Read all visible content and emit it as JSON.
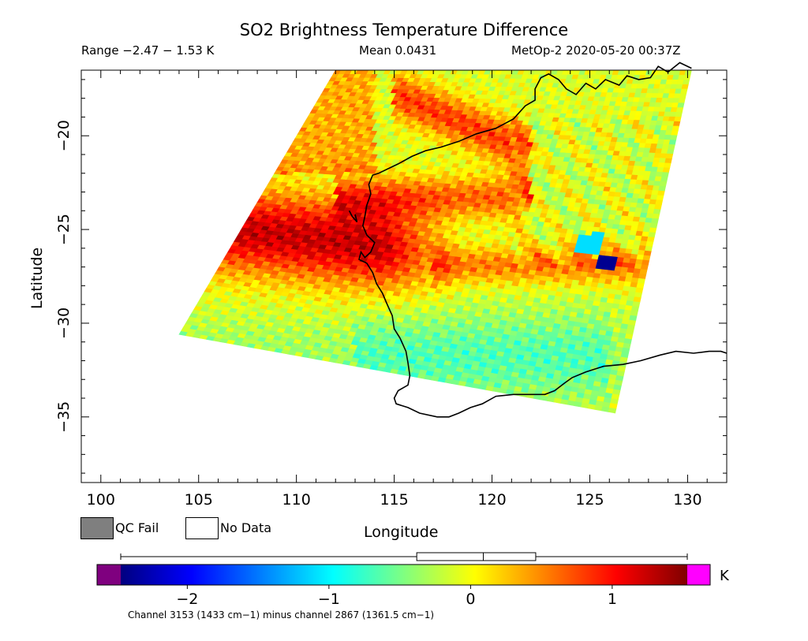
{
  "header": {
    "title": "SO2 Brightness Temperature Difference",
    "range": "Range −2.47 − 1.53 K",
    "mean": "Mean 0.0431",
    "satellite": "MetOp-2 2020-05-20 00:37Z"
  },
  "legend": {
    "qc_fail": "QC Fail",
    "no_data": "No Data",
    "qc_fail_color": "#7f7f7f",
    "no_data_color": "#ffffff"
  },
  "footnote": "Channel 3153 (1433 cm−1) minus channel 2867 (1361.5 cm−1)",
  "chart_data": {
    "type": "heatmap",
    "title": "SO2 Brightness Temperature Difference",
    "xlabel": "Longitude",
    "ylabel": "Latitude",
    "xlim": [
      99,
      132
    ],
    "ylim": [
      -38.5,
      -16.5
    ],
    "x_ticks": [
      100,
      105,
      110,
      115,
      120,
      125,
      130
    ],
    "y_ticks": [
      -20,
      -25,
      -30,
      -35
    ],
    "x_tick_labels": [
      "100",
      "105",
      "110",
      "115",
      "120",
      "125",
      "130"
    ],
    "y_tick_labels": [
      "−20",
      "−25",
      "−30",
      "−35"
    ],
    "value_range": [
      -2.47,
      1.53
    ],
    "mean": 0.0431,
    "units": "K",
    "swath_corners": [
      [
        104.0,
        -30.6
      ],
      [
        112.0,
        -16.5
      ],
      [
        130.2,
        -16.5
      ],
      [
        126.3,
        -34.8
      ]
    ],
    "features": [
      {
        "name": "strong positive band",
        "lon": [
          105,
          113
        ],
        "lat": [
          -23,
          -27
        ],
        "value": 1.3
      },
      {
        "name": "positive band north",
        "lon": [
          113,
          122
        ],
        "lat": [
          -22.5,
          -24.5
        ],
        "value": 0.8
      },
      {
        "name": "positive band south",
        "lon": [
          118,
          127
        ],
        "lat": [
          -26,
          -28
        ],
        "value": 0.8
      },
      {
        "name": "positive streak NE",
        "lon": [
          116,
          122
        ],
        "lat": [
          -16.5,
          -20.5
        ],
        "value": 1.0
      },
      {
        "name": "negative region south",
        "lon": [
          113,
          124
        ],
        "lat": [
          -29.5,
          -33.5
        ],
        "value": -0.5
      },
      {
        "name": "negative spot",
        "lon": [
          125.3,
          126.3
        ],
        "lat": [
          -26.5,
          -27.0
        ],
        "value": -2.4
      }
    ],
    "colorbar": {
      "ticks": [
        -2,
        -1,
        0,
        1
      ],
      "tick_labels": [
        "−2",
        "−1",
        "0",
        "1"
      ],
      "range": [
        -2.47,
        1.53
      ],
      "unit": "K",
      "underflow_color": "#7f007f",
      "overflow_color": "#ff00ff",
      "colors": [
        "#00007f",
        "#0000ff",
        "#0080ff",
        "#00ffff",
        "#80ff80",
        "#ffff00",
        "#ff8000",
        "#ff0000",
        "#7f0000"
      ],
      "boxplot": {
        "whisker_low": -2.47,
        "q1": -0.38,
        "median": 0.09,
        "q3": 0.46,
        "whisker_high": 1.53
      }
    }
  }
}
